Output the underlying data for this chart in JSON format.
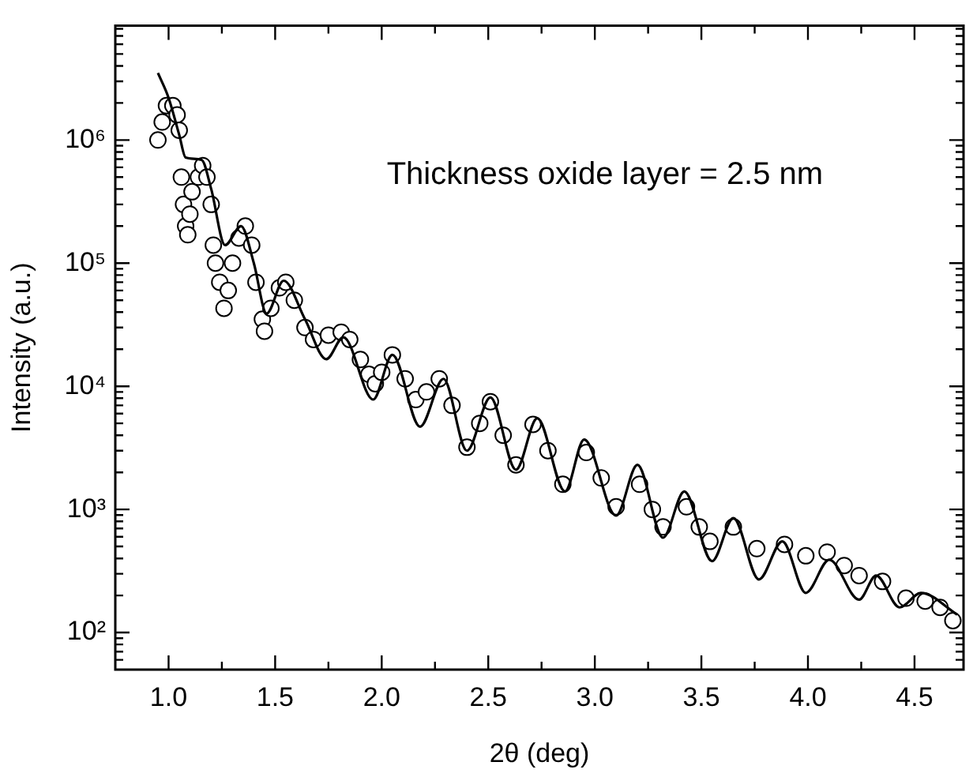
{
  "chart_data": {
    "type": "scatter",
    "xlabel": "2θ (deg)",
    "ylabel": "Intensity (a.u.)",
    "log": "y",
    "xlim": [
      0.75,
      4.73
    ],
    "ylim": [
      50,
      8500000
    ],
    "xticks": [
      {
        "value": 1,
        "label": "1.0"
      },
      {
        "value": 1.25,
        "label": null
      },
      {
        "value": 1.5,
        "label": "1.5"
      },
      {
        "value": 1.75,
        "label": null
      },
      {
        "value": 2,
        "label": "2.0"
      },
      {
        "value": 2.25,
        "label": null
      },
      {
        "value": 2.5,
        "label": "2.5"
      },
      {
        "value": 2.75,
        "label": null
      },
      {
        "value": 3,
        "label": "3.0"
      },
      {
        "value": 3.25,
        "label": null
      },
      {
        "value": 3.5,
        "label": "3.5"
      },
      {
        "value": 3.75,
        "label": null
      },
      {
        "value": 4,
        "label": "4.0"
      },
      {
        "value": 4.25,
        "label": null
      },
      {
        "value": 4.5,
        "label": "4.5"
      }
    ],
    "yticks": [
      {
        "value": 60,
        "label": null
      },
      {
        "value": 70,
        "label": null
      },
      {
        "value": 80,
        "label": null
      },
      {
        "value": 90,
        "label": null
      },
      {
        "value": 100,
        "label": "10²"
      },
      {
        "value": 200,
        "label": null
      },
      {
        "value": 300,
        "label": null
      },
      {
        "value": 400,
        "label": null
      },
      {
        "value": 500,
        "label": null
      },
      {
        "value": 600,
        "label": null
      },
      {
        "value": 700,
        "label": null
      },
      {
        "value": 800,
        "label": null
      },
      {
        "value": 900,
        "label": null
      },
      {
        "value": 1000,
        "label": "10³"
      },
      {
        "value": 2000,
        "label": null
      },
      {
        "value": 3000,
        "label": null
      },
      {
        "value": 4000,
        "label": null
      },
      {
        "value": 5000,
        "label": null
      },
      {
        "value": 6000,
        "label": null
      },
      {
        "value": 7000,
        "label": null
      },
      {
        "value": 8000,
        "label": null
      },
      {
        "value": 9000,
        "label": null
      },
      {
        "value": 10000,
        "label": "10⁴"
      },
      {
        "value": 20000,
        "label": null
      },
      {
        "value": 30000,
        "label": null
      },
      {
        "value": 40000,
        "label": null
      },
      {
        "value": 50000,
        "label": null
      },
      {
        "value": 60000,
        "label": null
      },
      {
        "value": 70000,
        "label": null
      },
      {
        "value": 80000,
        "label": null
      },
      {
        "value": 90000,
        "label": null
      },
      {
        "value": 100000,
        "label": "10⁵"
      },
      {
        "value": 200000,
        "label": null
      },
      {
        "value": 300000,
        "label": null
      },
      {
        "value": 400000,
        "label": null
      },
      {
        "value": 500000,
        "label": null
      },
      {
        "value": 600000,
        "label": null
      },
      {
        "value": 700000,
        "label": null
      },
      {
        "value": 800000,
        "label": null
      },
      {
        "value": 900000,
        "label": null
      },
      {
        "value": 1000000,
        "label": "10⁶"
      },
      {
        "value": 2000000,
        "label": null
      },
      {
        "value": 3000000,
        "label": null
      },
      {
        "value": 4000000,
        "label": null
      },
      {
        "value": 5000000,
        "label": null
      },
      {
        "value": 6000000,
        "label": null
      },
      {
        "value": 7000000,
        "label": null
      },
      {
        "value": 8000000,
        "label": null
      }
    ],
    "annotations": [
      "Thickness oxide layer = 2.5 nm"
    ],
    "series": [
      {
        "type": "scatter",
        "marker": "circle",
        "color": "#000000",
        "x": [
          0.95,
          0.97,
          0.99,
          1.02,
          1.04,
          1.05,
          1.06,
          1.07,
          1.08,
          1.09,
          1.1,
          1.11,
          1.14,
          1.16,
          1.18,
          1.2,
          1.21,
          1.22,
          1.24,
          1.26,
          1.28,
          1.3,
          1.33,
          1.36,
          1.39,
          1.41,
          1.44,
          1.45,
          1.48,
          1.52,
          1.55,
          1.59,
          1.64,
          1.68,
          1.75,
          1.81,
          1.85,
          1.9,
          1.94,
          1.97,
          2.0,
          2.05,
          2.11,
          2.16,
          2.21,
          2.27,
          2.33,
          2.4,
          2.46,
          2.51,
          2.57,
          2.63,
          2.71,
          2.78,
          2.85,
          2.96,
          3.03,
          3.1,
          3.21,
          3.27,
          3.32,
          3.43,
          3.49,
          3.54,
          3.65,
          3.76,
          3.89,
          3.99,
          4.09,
          4.17,
          4.24,
          4.35,
          4.46,
          4.55,
          4.62,
          4.68
        ],
        "values": [
          1000000,
          1400000,
          1900000,
          1900000,
          1600000,
          1200000,
          500000,
          300000,
          200000,
          170000,
          250000,
          380000,
          500000,
          620000,
          500000,
          300000,
          140000,
          100000,
          70000,
          43000,
          60000,
          100000,
          160000,
          200000,
          140000,
          70000,
          35000,
          28000,
          43000,
          63000,
          70000,
          50000,
          30000,
          24000,
          26000,
          27500,
          24000,
          16500,
          12500,
          10500,
          13000,
          18000,
          11500,
          7800,
          9000,
          11500,
          7000,
          3200,
          5000,
          7500,
          4000,
          2300,
          4900,
          3000,
          1600,
          2900,
          1800,
          1050,
          1600,
          1000,
          720,
          1050,
          720,
          550,
          720,
          480,
          520,
          420,
          450,
          350,
          290,
          260,
          190,
          180,
          160,
          125
        ]
      },
      {
        "type": "line",
        "marker": "none",
        "color": "#000000",
        "x": [
          0.95,
          1.0,
          1.05,
          1.08,
          1.155,
          1.2,
          1.265,
          1.34,
          1.4,
          1.46,
          1.54,
          1.64,
          1.74,
          1.82,
          1.96,
          2.05,
          2.18,
          2.29,
          2.4,
          2.51,
          2.63,
          2.73,
          2.86,
          2.95,
          3.1,
          3.2,
          3.32,
          3.42,
          3.55,
          3.65,
          3.77,
          3.88,
          3.99,
          4.1,
          4.24,
          4.32,
          4.43,
          4.53,
          4.7
        ],
        "values": [
          3500000,
          2200000,
          1100000,
          720000,
          690000,
          400000,
          140000,
          200000,
          100000,
          39000,
          72000,
          35000,
          16600,
          25000,
          7800,
          18000,
          4700,
          11500,
          3000,
          8100,
          2100,
          5500,
          1400,
          3700,
          890,
          2300,
          590,
          1400,
          380,
          850,
          270,
          550,
          210,
          390,
          185,
          290,
          160,
          210,
          140
        ]
      }
    ]
  }
}
